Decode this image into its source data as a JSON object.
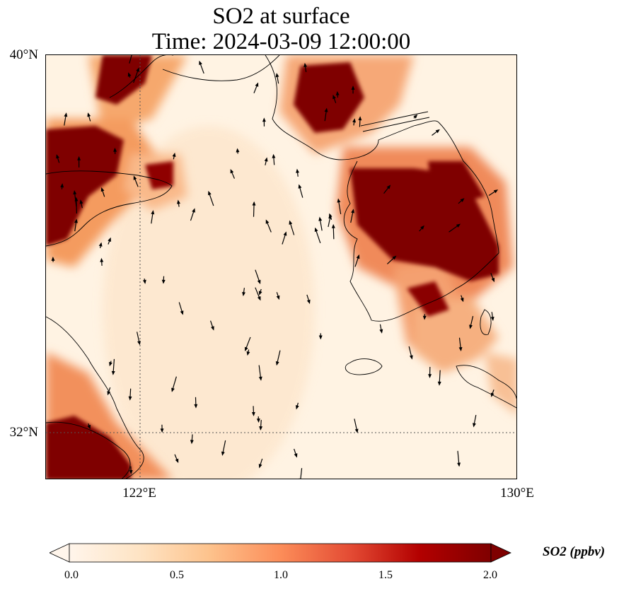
{
  "title": {
    "line1": "SO2 at surface",
    "line2": "Time: 2024-03-09 12:00:00"
  },
  "axes": {
    "lat_ticks": [
      {
        "label": "40°N",
        "value": 40
      },
      {
        "label": "32°N",
        "value": 32
      }
    ],
    "lon_ticks": [
      {
        "label": "122°E",
        "value": 122
      },
      {
        "label": "130°E",
        "value": 130
      }
    ],
    "lon_range": [
      120,
      130
    ],
    "lat_range": [
      31,
      40
    ],
    "gridlines": "dotted"
  },
  "colorbar": {
    "label": "SO2 (ppbv)",
    "ticks": [
      "0.0",
      "0.5",
      "1.0",
      "1.5",
      "2.0"
    ],
    "range": [
      0,
      2
    ],
    "colormap": [
      "#fff5eb",
      "#fdd9b1",
      "#fdab6c",
      "#f2703e",
      "#cf3a1e",
      "#9c0d0a",
      "#7f0000"
    ],
    "extend": "both"
  },
  "colors": {
    "high": "#7f0000",
    "mid": "#d7301f",
    "low": "#fdd49e",
    "background": "#fff3e3"
  },
  "features": [
    "coastlines",
    "wind-vectors",
    "so2-concentration-field"
  ]
}
